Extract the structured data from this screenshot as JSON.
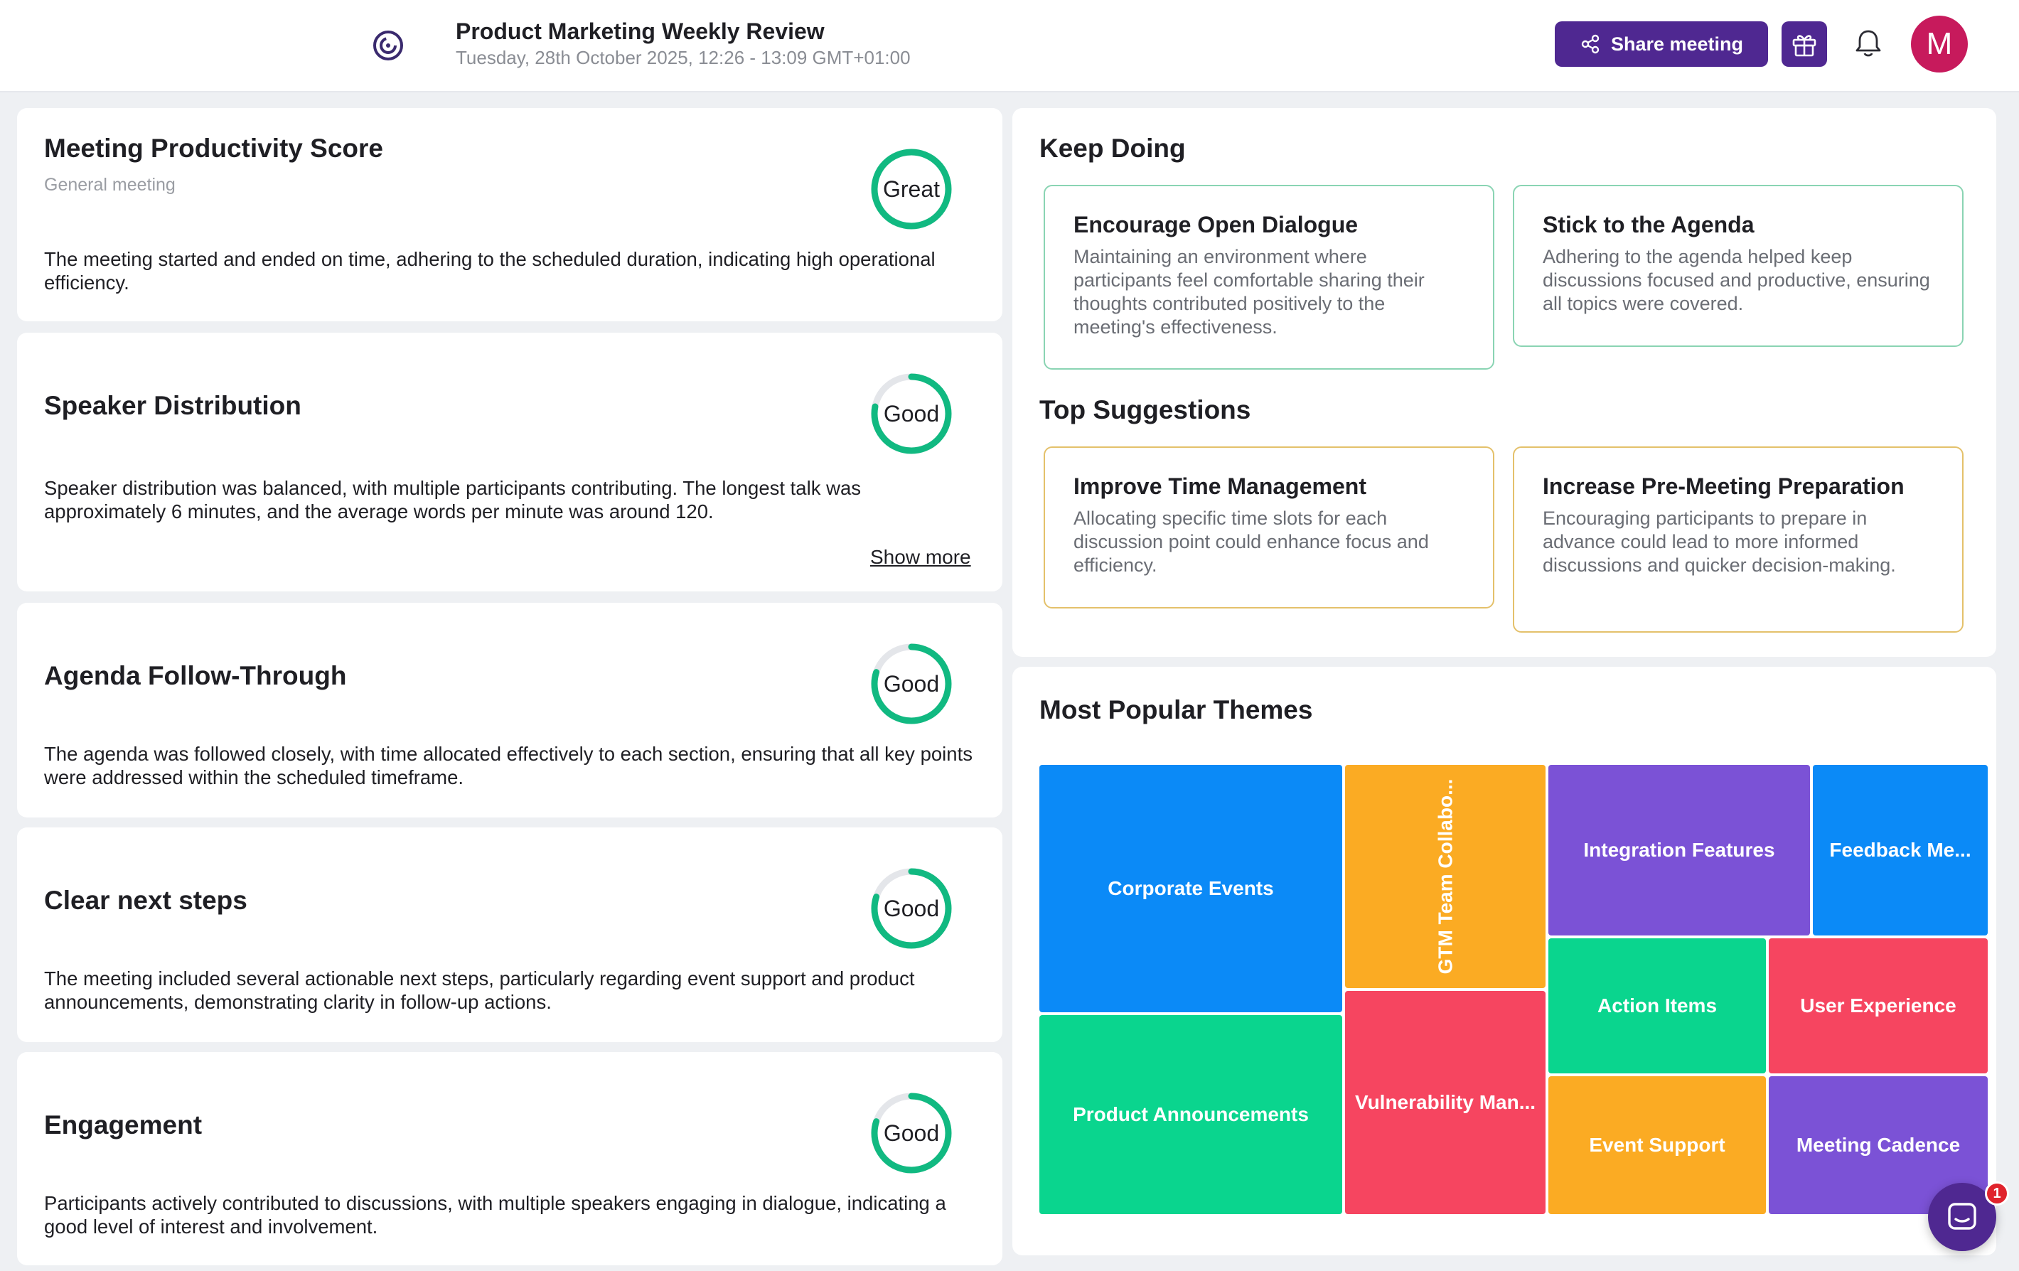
{
  "header": {
    "title": "Product Marketing Weekly Review",
    "subtitle": "Tuesday, 28th October 2025, 12:26 - 13:09 GMT+01:00",
    "share_label": "Share meeting",
    "avatar_initial": "M",
    "icons": [
      "logo-icon",
      "share-icon",
      "gift-icon",
      "bell-icon"
    ]
  },
  "metrics": [
    {
      "title": "Meeting Productivity Score",
      "subtitle": "General meeting",
      "score_label": "Great",
      "score_fraction": 1.0,
      "description": "The meeting started and ended on time, adhering to the scheduled duration, indicating high operational efficiency."
    },
    {
      "title": "Speaker Distribution",
      "score_label": "Good",
      "score_fraction": 0.78,
      "description": "Speaker distribution was balanced, with multiple participants contributing. The longest talk was approximately 6 minutes, and the average words per minute was around 120.",
      "show_more": "Show more"
    },
    {
      "title": "Agenda Follow-Through",
      "score_label": "Good",
      "score_fraction": 0.8,
      "description": "The agenda was followed closely, with time allocated effectively to each section, ensuring that all key points were addressed within the scheduled timeframe."
    },
    {
      "title": "Clear next steps",
      "score_label": "Good",
      "score_fraction": 0.8,
      "description": "The meeting included several actionable next steps, particularly regarding event support and product announcements, demonstrating clarity in follow-up actions."
    },
    {
      "title": "Engagement",
      "score_label": "Good",
      "score_fraction": 0.8,
      "description": "Participants actively contributed to discussions, with multiple speakers engaging in dialogue, indicating a good level of interest and involvement."
    }
  ],
  "keep_doing": {
    "title": "Keep Doing",
    "items": [
      {
        "title": "Encourage Open Dialogue",
        "description": "Maintaining an environment where participants feel comfortable sharing their thoughts contributed positively to the meeting's effectiveness."
      },
      {
        "title": "Stick to the Agenda",
        "description": "Adhering to the agenda helped keep discussions focused and productive, ensuring all topics were covered."
      }
    ]
  },
  "top_suggestions": {
    "title": "Top Suggestions",
    "items": [
      {
        "title": "Improve Time Management",
        "description": "Allocating specific time slots for each discussion point could enhance focus and efficiency."
      },
      {
        "title": "Increase Pre-Meeting Preparation",
        "description": "Encouraging participants to prepare in advance could lead to more informed discussions and quicker decision-making."
      }
    ]
  },
  "themes": {
    "title": "Most Popular Themes",
    "tiles": [
      {
        "label": "Corporate Events",
        "color": "#0b8af7"
      },
      {
        "label": "GTM Team Collabo...",
        "color": "#fbab23"
      },
      {
        "label": "Integration Features",
        "color": "#7b52d6"
      },
      {
        "label": "Feedback Me...",
        "color": "#0b8af7"
      },
      {
        "label": "Action Items",
        "color": "#0ad58e"
      },
      {
        "label": "User Experience",
        "color": "#f64560"
      },
      {
        "label": "Product Announcements",
        "color": "#0ad58e"
      },
      {
        "label": "Vulnerability Man...",
        "color": "#f64560"
      },
      {
        "label": "Event Support",
        "color": "#fbab23"
      },
      {
        "label": "Meeting Cadence",
        "color": "#7b52d6"
      }
    ]
  },
  "chat": {
    "badge": "1"
  },
  "colors": {
    "brand": "#4f2891",
    "score_ring": "#11b981",
    "score_track": "#e4e6ea",
    "avatar": "#c71a5c"
  }
}
